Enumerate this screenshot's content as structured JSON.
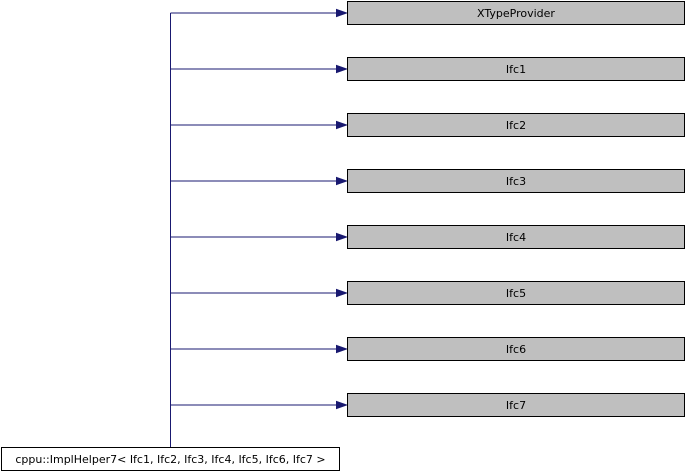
{
  "diagram": {
    "derived_class": "cppu::ImplHelper7< Ifc1, Ifc2, Ifc3, Ifc4, Ifc5, Ifc6, Ifc7 >",
    "base_classes": [
      "XTypeProvider",
      "Ifc1",
      "Ifc2",
      "Ifc3",
      "Ifc4",
      "Ifc5",
      "Ifc6",
      "Ifc7"
    ]
  },
  "colors": {
    "base_fill": "#bfbfbf",
    "derived_fill": "#ffffff",
    "edge": "#191970",
    "border": "#000000"
  }
}
